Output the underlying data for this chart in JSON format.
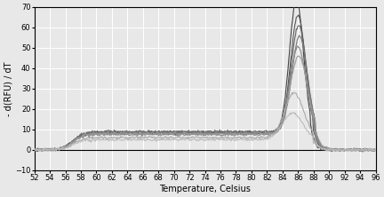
{
  "xmin": 52,
  "xmax": 96,
  "ymin": -10,
  "ymax": 70,
  "xticks": [
    52,
    54,
    56,
    58,
    60,
    62,
    64,
    66,
    68,
    70,
    72,
    74,
    76,
    78,
    80,
    82,
    84,
    86,
    88,
    90,
    92,
    94,
    96
  ],
  "yticks": [
    -10,
    0,
    10,
    20,
    30,
    40,
    50,
    60,
    70
  ],
  "xlabel": "Temperature, Celsius",
  "ylabel": "- d(RFU) / dT",
  "background_color": "#e8e8e8",
  "grid_color": "#ffffff",
  "line_colors": [
    "#555555",
    "#777777",
    "#999999",
    "#aaaaaa",
    "#bbbbbb",
    "#cccccc",
    "#888888",
    "#666666"
  ],
  "num_curves": 8
}
